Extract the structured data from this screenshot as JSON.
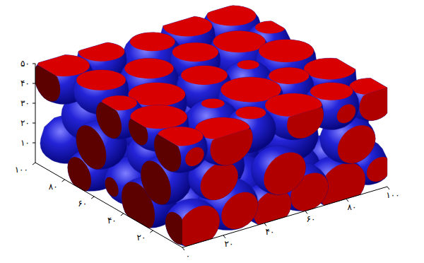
{
  "chart_data": {
    "type": "isosurface",
    "color": "#2424d8",
    "xlim": [
      0,
      100
    ],
    "ylim": [
      0,
      100
    ],
    "zlim": [
      0,
      50
    ],
    "xticks": [
      {
        "value": 0,
        "label": "۰"
      },
      {
        "value": 20,
        "label": "۲۰"
      },
      {
        "value": 40,
        "label": "۴۰"
      },
      {
        "value": 60,
        "label": "۶۰"
      },
      {
        "value": 80,
        "label": "۸۰"
      },
      {
        "value": 100,
        "label": "۱۰۰"
      }
    ],
    "yticks": [
      {
        "value": 20,
        "label": "۲۰"
      },
      {
        "value": 40,
        "label": "۴۰"
      },
      {
        "value": 60,
        "label": "۶۰"
      },
      {
        "value": 80,
        "label": "۸۰"
      },
      {
        "value": 100,
        "label": "۱۰۰"
      }
    ],
    "zticks": [
      {
        "value": 10,
        "label": "۱۰"
      },
      {
        "value": 20,
        "label": "۲۰"
      },
      {
        "value": 30,
        "label": "۳۰"
      },
      {
        "value": 40,
        "label": "۴۰"
      },
      {
        "value": 50,
        "label": "۵۰"
      }
    ],
    "spheres": [
      [
        6,
        10,
        44,
        11
      ],
      [
        24,
        6,
        45,
        12
      ],
      [
        42,
        12,
        42,
        10
      ],
      [
        60,
        8,
        46,
        12
      ],
      [
        80,
        10,
        43,
        11
      ],
      [
        95,
        5,
        44,
        10
      ],
      [
        10,
        30,
        46,
        12
      ],
      [
        35,
        28,
        40,
        11
      ],
      [
        55,
        30,
        45,
        13
      ],
      [
        75,
        32,
        44,
        10
      ],
      [
        92,
        28,
        46,
        11
      ],
      [
        5,
        50,
        43,
        10
      ],
      [
        22,
        48,
        46,
        12
      ],
      [
        48,
        52,
        44,
        11
      ],
      [
        68,
        50,
        41,
        10
      ],
      [
        88,
        52,
        45,
        12
      ],
      [
        12,
        72,
        45,
        11
      ],
      [
        34,
        70,
        43,
        12
      ],
      [
        58,
        72,
        46,
        10
      ],
      [
        78,
        70,
        44,
        12
      ],
      [
        96,
        74,
        42,
        10
      ],
      [
        8,
        92,
        44,
        12
      ],
      [
        28,
        94,
        46,
        10
      ],
      [
        50,
        90,
        42,
        12
      ],
      [
        70,
        94,
        45,
        11
      ],
      [
        90,
        92,
        43,
        12
      ],
      [
        4,
        18,
        25,
        11
      ],
      [
        18,
        4,
        28,
        10
      ],
      [
        30,
        20,
        24,
        12
      ],
      [
        50,
        4,
        22,
        11
      ],
      [
        66,
        20,
        28,
        12
      ],
      [
        85,
        6,
        26,
        11
      ],
      [
        98,
        20,
        24,
        10
      ],
      [
        14,
        40,
        26,
        10
      ],
      [
        40,
        40,
        28,
        12
      ],
      [
        62,
        42,
        22,
        10
      ],
      [
        82,
        38,
        27,
        12
      ],
      [
        4,
        62,
        24,
        11
      ],
      [
        26,
        60,
        25,
        10
      ],
      [
        52,
        64,
        27,
        12
      ],
      [
        74,
        58,
        24,
        11
      ],
      [
        94,
        62,
        28,
        10
      ],
      [
        16,
        84,
        26,
        12
      ],
      [
        42,
        82,
        23,
        10
      ],
      [
        64,
        86,
        27,
        12
      ],
      [
        86,
        82,
        24,
        11
      ],
      [
        8,
        4,
        8,
        11
      ],
      [
        28,
        8,
        10,
        12
      ],
      [
        44,
        4,
        6,
        10
      ],
      [
        62,
        6,
        9,
        11
      ],
      [
        78,
        4,
        7,
        12
      ],
      [
        96,
        8,
        10,
        10
      ],
      [
        4,
        30,
        8,
        12
      ],
      [
        20,
        22,
        6,
        10
      ],
      [
        46,
        24,
        10,
        11
      ],
      [
        70,
        24,
        8,
        12
      ],
      [
        90,
        26,
        6,
        11
      ],
      [
        10,
        48,
        10,
        11
      ],
      [
        34,
        50,
        7,
        12
      ],
      [
        58,
        46,
        9,
        10
      ],
      [
        80,
        48,
        10,
        11
      ],
      [
        6,
        70,
        7,
        10
      ],
      [
        24,
        78,
        9,
        12
      ],
      [
        48,
        72,
        6,
        11
      ],
      [
        70,
        76,
        10,
        12
      ],
      [
        92,
        70,
        8,
        10
      ],
      [
        12,
        96,
        10,
        11
      ],
      [
        38,
        98,
        7,
        12
      ],
      [
        60,
        94,
        9,
        10
      ],
      [
        84,
        96,
        8,
        12
      ]
    ]
  }
}
